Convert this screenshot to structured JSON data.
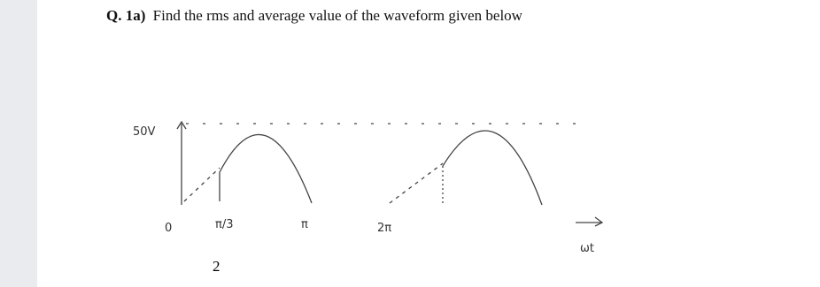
{
  "question": {
    "number": "Q. 1a)",
    "text": "Find the rms and average value of the waveform given below"
  },
  "figure": {
    "peak_label": "50V",
    "origin_label": "0",
    "x_labels": [
      "π/3",
      "π",
      "2π"
    ],
    "axis_label": "ωt"
  },
  "page_number": "2"
}
